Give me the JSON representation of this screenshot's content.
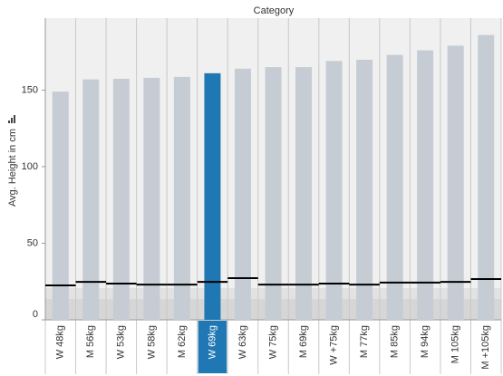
{
  "chart_data": {
    "type": "bar",
    "title": "Category",
    "y_label": "Avg. Height in cm",
    "categories": [
      "W 48kg",
      "M 56kg",
      "W 53kg",
      "W 58kg",
      "M 62kg",
      "W 69kg",
      "W 63kg",
      "W 75kg",
      "M 69kg",
      "W +75kg",
      "M 77kg",
      "M 85kg",
      "M 94kg",
      "M 105kg",
      "M +105kg"
    ],
    "values": [
      149,
      157,
      157.4,
      158,
      158.6,
      161,
      164,
      165,
      165,
      169,
      169.8,
      173,
      176,
      179,
      186
    ],
    "reference_values": [
      22.5,
      24.8,
      23.7,
      23,
      23,
      24.8,
      27.2,
      23,
      23,
      23.7,
      23,
      24.3,
      24.3,
      24.8,
      26.6
    ],
    "color": "#c5ccd3",
    "highlight_color": "#1f77b4",
    "reference_color": "#000000",
    "highlighted_index": 5,
    "ylim": [
      0,
      197
    ],
    "yticks": [
      0,
      50,
      100,
      150
    ],
    "grid": false
  }
}
